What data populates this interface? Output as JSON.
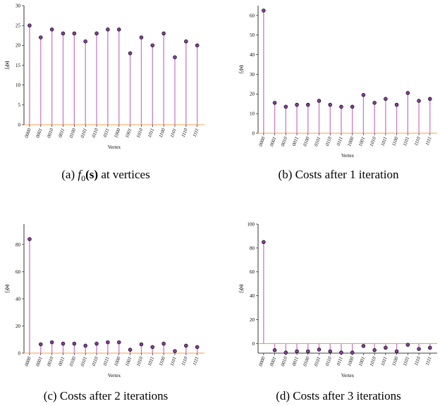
{
  "colors": {
    "stem": "#c77dc7",
    "marker": "#8a3d9e",
    "baseline": "#f0a24a"
  },
  "chart_data": [
    {
      "type": "stem",
      "caption": "(a) $f_0(\\mathbf{s})$ at vertices",
      "caption_prefix": "(a) ",
      "caption_math": "f",
      "caption_sub": "0",
      "caption_paren": "(s)",
      "caption_suffix": " at vertices",
      "xlabel": "Vertex",
      "ylabel": "f₀(s)",
      "ylabel_base": "f",
      "ylabel_sub": "0",
      "ylabel_arg": "(s)",
      "ylim": [
        0,
        30
      ],
      "yticks": [
        0,
        5,
        10,
        15,
        20,
        25,
        30
      ],
      "categories": [
        "0000",
        "0001",
        "0010",
        "0011",
        "0100",
        "0101",
        "0110",
        "0111",
        "1000",
        "1001",
        "1010",
        "1011",
        "1100",
        "1101",
        "1110",
        "1111"
      ],
      "values": [
        25,
        22,
        24,
        23,
        23,
        21,
        23,
        24,
        24,
        18,
        22,
        20,
        23,
        17,
        21,
        20
      ],
      "baseline": 0
    },
    {
      "type": "stem",
      "caption": "(b) Costs after 1 iteration",
      "xlabel": "Vertex",
      "ylabel": "f₁(s)",
      "ylabel_base": "f",
      "ylabel_sub": "1",
      "ylabel_arg": "(s)",
      "ylim": [
        0,
        65
      ],
      "yticks": [
        0,
        10,
        20,
        30,
        40,
        50,
        60
      ],
      "categories": [
        "0000",
        "0001",
        "0010",
        "0011",
        "0100",
        "0101",
        "0110",
        "0111",
        "1000",
        "1001",
        "1010",
        "1011",
        "1100",
        "1101",
        "1110",
        "1111"
      ],
      "values": [
        62.5,
        15.5,
        13.5,
        14.5,
        14.5,
        16.5,
        14.5,
        13.5,
        13.5,
        19.5,
        15.5,
        17.5,
        14.5,
        20.5,
        16.5,
        17.5
      ],
      "baseline": 0
    },
    {
      "type": "stem",
      "caption": "(c) Costs after 2 iterations",
      "xlabel": "Vertex",
      "ylabel": "f₂(s)",
      "ylabel_base": "f",
      "ylabel_sub": "2",
      "ylabel_arg": "(s)",
      "ylim": [
        0,
        95
      ],
      "yticks": [
        0,
        20,
        40,
        60,
        80
      ],
      "categories": [
        "0000",
        "0001",
        "0010",
        "0011",
        "0100",
        "0101",
        "0110",
        "0111",
        "1000",
        "1001",
        "1010",
        "1011",
        "1100",
        "1101",
        "1110",
        "1111"
      ],
      "values": [
        84,
        6.5,
        8,
        7,
        7,
        5.5,
        7,
        8,
        8,
        2.5,
        6.5,
        4.5,
        7,
        1.5,
        5.5,
        4.5
      ],
      "baseline": 0
    },
    {
      "type": "stem",
      "caption": "(d) Costs after 3 iterations",
      "xlabel": "Vertex",
      "ylabel": "f₃(s)",
      "ylabel_base": "f",
      "ylabel_sub": "3",
      "ylabel_arg": "(s)",
      "ylim": [
        -8,
        100
      ],
      "yticks": [
        0,
        20,
        40,
        60,
        80,
        100
      ],
      "categories": [
        "0000",
        "0001",
        "0010",
        "0011",
        "0100",
        "0101",
        "0110",
        "0111",
        "1000",
        "1001",
        "1010",
        "1011",
        "1100",
        "1101",
        "1110",
        "1111"
      ],
      "values": [
        85,
        -5.5,
        -7.5,
        -6.5,
        -6.5,
        -5,
        -6.5,
        -7.5,
        -7.5,
        -2,
        -5.5,
        -3.5,
        -6.5,
        -1,
        -4.5,
        -3.5
      ],
      "baseline": 0
    }
  ]
}
